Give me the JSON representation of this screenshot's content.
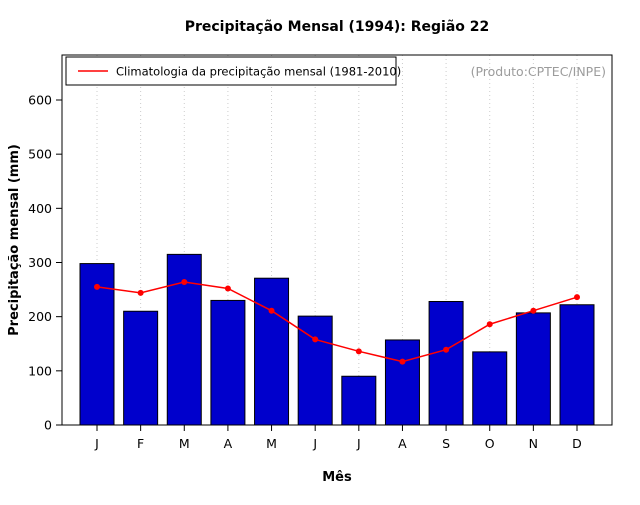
{
  "title": "Precipitação Mensal (1994): Região 22",
  "watermark": "(Produto:CPTEC/INPE)",
  "legend": {
    "label": "Climatologia da precipitação mensal (1981-2010)"
  },
  "colors": {
    "bar_fill": "#0000cc",
    "bar_stroke": "#000000",
    "line": "#ff0000",
    "grid": "#cccccc",
    "watermark": "#9c9c9c"
  },
  "chart_data": {
    "type": "bar",
    "title": "Precipitação Mensal (1994): Região 22",
    "xlabel": "Mês",
    "ylabel": "Precipitação mensal (mm)",
    "categories": [
      "J",
      "F",
      "M",
      "A",
      "M",
      "J",
      "J",
      "A",
      "S",
      "O",
      "N",
      "D"
    ],
    "series": [
      {
        "name": "Precipitação mensal 1994",
        "type": "bar",
        "color": "#0000cc",
        "values": [
          298,
          210,
          315,
          230,
          271,
          201,
          90,
          157,
          228,
          135,
          207,
          222
        ]
      },
      {
        "name": "Climatologia da precipitação mensal (1981-2010)",
        "type": "line",
        "color": "#ff0000",
        "values": [
          255,
          244,
          264,
          252,
          211,
          158,
          136,
          117,
          139,
          186,
          211,
          236
        ]
      }
    ],
    "ylim": [
      0,
      600
    ],
    "yticks": [
      0,
      100,
      200,
      300,
      400,
      500,
      600
    ],
    "grid": "dotted-vertical",
    "legend_position": "top-left"
  }
}
